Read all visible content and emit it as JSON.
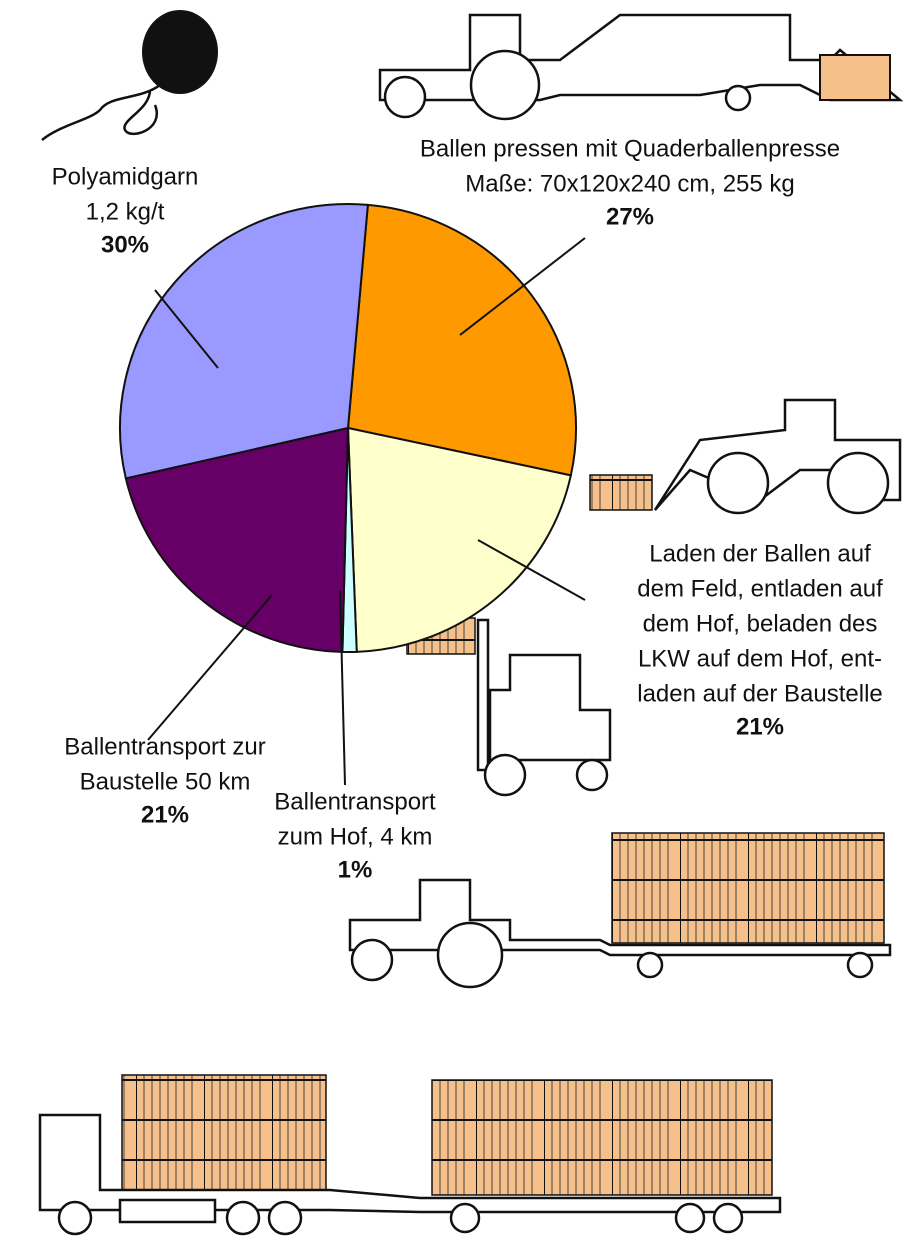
{
  "chart_data": {
    "type": "pie",
    "categories": [
      [
        "Ballen pressen mit Quaderballenpresse",
        "Maße: 70x120x240 cm, 255 kg"
      ],
      [
        "Laden der Ballen auf",
        "dem Feld, entladen auf",
        "dem Hof, beladen des",
        "LKW auf dem Hof, ent-",
        "laden auf der Baustelle"
      ],
      [
        "Ballentransport",
        "zum Hof, 4 km"
      ],
      [
        "Ballentransport zur",
        "Baustelle 50 km"
      ],
      [
        "Polyamidgarn",
        "1,2 kg/t"
      ]
    ],
    "values": [
      27,
      21,
      1,
      21,
      30
    ],
    "value_labels": [
      "27%",
      "21%",
      "1%",
      "21%",
      "30%"
    ],
    "colors": [
      "#FF9900",
      "#FFFFCC",
      "#CCFFFF",
      "#660066",
      "#9999FF"
    ]
  }
}
